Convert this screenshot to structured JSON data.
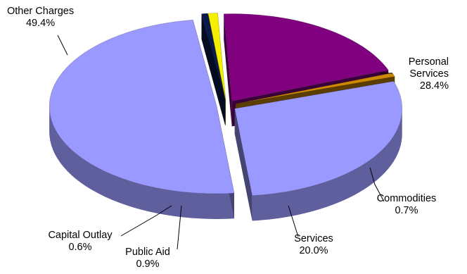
{
  "chart_data": {
    "type": "pie",
    "style": "3d-exploded",
    "slices": [
      {
        "name": "Personal Services",
        "label_line1": "Personal",
        "label_line2": "Services",
        "value": 28.4,
        "pct": "28.4%",
        "color": "#9999ff"
      },
      {
        "name": "Commodities",
        "label_line1": "Commodities",
        "value": 0.7,
        "pct": "0.7%",
        "color": "#cc8800"
      },
      {
        "name": "Services",
        "label_line1": "Services",
        "value": 20.0,
        "pct": "20.0%",
        "color": "#800080"
      },
      {
        "name": "Public Aid",
        "label_line1": "Public Aid",
        "value": 0.9,
        "pct": "0.9%",
        "color": "#f5f000"
      },
      {
        "name": "Capital Outlay",
        "label_line1": "Capital Outlay",
        "value": 0.6,
        "pct": "0.6%",
        "color": "#0a1a4a"
      },
      {
        "name": "Other Charges",
        "label_line1": "Other Charges",
        "value": 49.4,
        "pct": "49.4%",
        "color": "#9999ff"
      }
    ]
  }
}
